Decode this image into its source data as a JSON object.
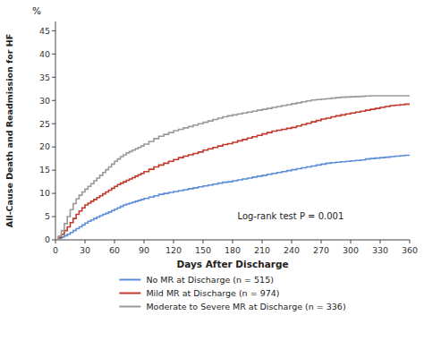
{
  "chart_data": {
    "type": "step",
    "xlabel": "Days After Discharge",
    "ylabel": "All-Cause Death and Readmission for HF",
    "annotations": [
      {
        "text": "%"
      },
      {
        "text": "Log-rank test P = 0.001",
        "x": 185,
        "y": 4.5
      }
    ],
    "xlim": [
      0,
      360
    ],
    "ylim": [
      0,
      47
    ],
    "xticks": [
      0,
      30,
      60,
      90,
      120,
      150,
      180,
      210,
      240,
      270,
      300,
      330,
      360
    ],
    "yticks": [
      0,
      5,
      10,
      15,
      20,
      25,
      30,
      35,
      40,
      45
    ],
    "grid": false,
    "legend": "bottom",
    "x": [
      0,
      3,
      6,
      9,
      12,
      15,
      18,
      21,
      24,
      27,
      30,
      33,
      36,
      39,
      42,
      45,
      48,
      51,
      54,
      57,
      60,
      63,
      66,
      69,
      72,
      75,
      78,
      81,
      84,
      87,
      90,
      95,
      100,
      105,
      110,
      115,
      120,
      125,
      130,
      135,
      140,
      145,
      150,
      155,
      160,
      165,
      170,
      175,
      180,
      185,
      190,
      195,
      200,
      205,
      210,
      215,
      220,
      225,
      230,
      235,
      240,
      245,
      250,
      255,
      260,
      265,
      270,
      275,
      280,
      285,
      290,
      295,
      300,
      305,
      310,
      315,
      320,
      325,
      330,
      335,
      340,
      345,
      350,
      355,
      360
    ],
    "series": [
      {
        "name": "No MR at Discharge (n = 515)",
        "color": "#5b8dd9",
        "values": [
          0,
          0.3,
          0.6,
          0.9,
          1.2,
          1.6,
          2.0,
          2.4,
          2.8,
          3.2,
          3.6,
          4.0,
          4.3,
          4.6,
          4.9,
          5.2,
          5.5,
          5.7,
          6.0,
          6.3,
          6.6,
          6.9,
          7.2,
          7.5,
          7.7,
          7.9,
          8.1,
          8.3,
          8.5,
          8.7,
          8.9,
          9.2,
          9.5,
          9.8,
          10.0,
          10.2,
          10.4,
          10.6,
          10.8,
          11.0,
          11.2,
          11.4,
          11.6,
          11.8,
          12.0,
          12.2,
          12.4,
          12.5,
          12.7,
          12.9,
          13.1,
          13.3,
          13.5,
          13.7,
          13.9,
          14.1,
          14.3,
          14.5,
          14.7,
          14.9,
          15.1,
          15.3,
          15.5,
          15.7,
          15.9,
          16.1,
          16.3,
          16.5,
          16.6,
          16.7,
          16.8,
          16.9,
          17.0,
          17.1,
          17.2,
          17.4,
          17.5,
          17.6,
          17.7,
          17.8,
          17.9,
          18.0,
          18.1,
          18.2,
          18.4
        ]
      },
      {
        "name": "Mild MR at Discharge (n = 974)",
        "color": "#c0392b",
        "values": [
          0,
          0.5,
          1.2,
          2.0,
          2.8,
          3.7,
          4.6,
          5.5,
          6.2,
          6.9,
          7.5,
          7.9,
          8.3,
          8.7,
          9.1,
          9.5,
          9.9,
          10.3,
          10.7,
          11.1,
          11.5,
          11.9,
          12.2,
          12.5,
          12.8,
          13.1,
          13.4,
          13.7,
          14.0,
          14.3,
          14.7,
          15.2,
          15.7,
          16.1,
          16.5,
          16.9,
          17.3,
          17.7,
          18.0,
          18.3,
          18.6,
          18.9,
          19.3,
          19.6,
          19.9,
          20.2,
          20.5,
          20.7,
          21.0,
          21.3,
          21.6,
          21.9,
          22.2,
          22.5,
          22.8,
          23.1,
          23.4,
          23.6,
          23.8,
          24.0,
          24.2,
          24.5,
          24.8,
          25.1,
          25.4,
          25.7,
          26.0,
          26.2,
          26.5,
          26.7,
          26.9,
          27.1,
          27.3,
          27.5,
          27.7,
          27.9,
          28.1,
          28.3,
          28.5,
          28.7,
          28.9,
          29.0,
          29.1,
          29.2,
          29.3
        ]
      },
      {
        "name": "Moderate to Severe MR at Discharge (n = 336)",
        "color": "#999999",
        "values": [
          0,
          0.8,
          2.0,
          3.5,
          5.0,
          6.5,
          7.8,
          8.8,
          9.6,
          10.3,
          10.9,
          11.5,
          12.1,
          12.7,
          13.3,
          13.9,
          14.5,
          15.1,
          15.7,
          16.3,
          16.9,
          17.4,
          17.9,
          18.3,
          18.7,
          19.0,
          19.3,
          19.6,
          19.9,
          20.2,
          20.6,
          21.2,
          21.8,
          22.3,
          22.7,
          23.1,
          23.5,
          23.8,
          24.1,
          24.4,
          24.7,
          25.0,
          25.3,
          25.6,
          25.9,
          26.2,
          26.5,
          26.7,
          26.9,
          27.1,
          27.3,
          27.5,
          27.7,
          27.9,
          28.1,
          28.3,
          28.5,
          28.7,
          28.9,
          29.1,
          29.3,
          29.5,
          29.7,
          29.9,
          30.1,
          30.2,
          30.3,
          30.4,
          30.5,
          30.6,
          30.7,
          30.75,
          30.8,
          30.85,
          30.9,
          30.95,
          31.0,
          31.0,
          31.0,
          31.0,
          31.0,
          31.0,
          31.0,
          31.0,
          31.0
        ]
      }
    ]
  }
}
